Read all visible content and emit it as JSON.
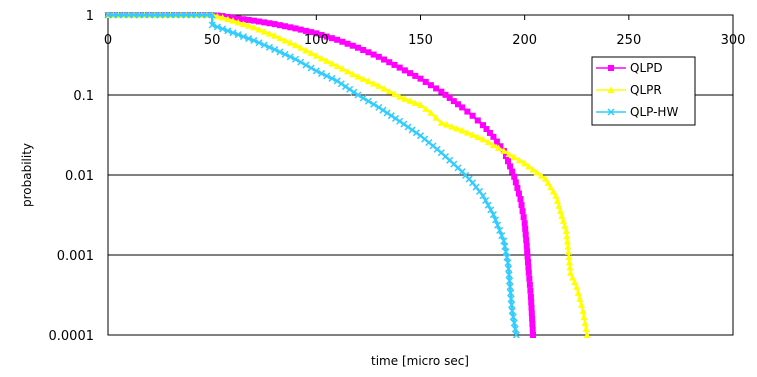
{
  "chart_data": {
    "type": "line",
    "title": "",
    "xlabel": "time [micro sec]",
    "ylabel": "probability",
    "xlim": [
      0,
      300
    ],
    "ylim": [
      0.0001,
      1
    ],
    "yscale": "log",
    "x_ticks": [
      0,
      50,
      100,
      150,
      200,
      250,
      300
    ],
    "x_tick_labels": [
      "0",
      "50",
      "100",
      "150",
      "200",
      "250",
      "300"
    ],
    "x_axis_position": "top",
    "y_ticks": [
      1,
      0.1,
      0.01,
      0.001,
      0.0001
    ],
    "y_tick_labels": [
      "1",
      "0.1",
      "0.01",
      "0.001",
      "0.0001"
    ],
    "grid": "horizontal",
    "legend_position": "right",
    "series": [
      {
        "name": "QLPD",
        "color": "#ff00ff",
        "marker": "square",
        "points": [
          [
            0,
            1
          ],
          [
            10,
            1
          ],
          [
            20,
            1
          ],
          [
            30,
            1
          ],
          [
            40,
            1
          ],
          [
            50,
            1
          ],
          [
            55,
            0.97
          ],
          [
            60,
            0.92
          ],
          [
            70,
            0.85
          ],
          [
            80,
            0.77
          ],
          [
            90,
            0.68
          ],
          [
            100,
            0.59
          ],
          [
            110,
            0.49
          ],
          [
            120,
            0.39
          ],
          [
            130,
            0.3
          ],
          [
            140,
            0.22
          ],
          [
            150,
            0.16
          ],
          [
            160,
            0.11
          ],
          [
            170,
            0.07
          ],
          [
            175,
            0.055
          ],
          [
            180,
            0.042
          ],
          [
            185,
            0.03
          ],
          [
            190,
            0.02
          ],
          [
            195,
            0.0095
          ],
          [
            198,
            0.005
          ],
          [
            200,
            0.0025
          ],
          [
            201,
            0.0013
          ],
          [
            202,
            0.0006
          ],
          [
            203,
            0.0003
          ],
          [
            204,
            0.0001
          ]
        ]
      },
      {
        "name": "QLPR",
        "color": "#ffff00",
        "marker": "triangle",
        "points": [
          [
            0,
            1
          ],
          [
            10,
            1
          ],
          [
            20,
            1
          ],
          [
            30,
            1
          ],
          [
            40,
            1
          ],
          [
            50,
            1
          ],
          [
            55,
            0.93
          ],
          [
            60,
            0.85
          ],
          [
            70,
            0.7
          ],
          [
            80,
            0.55
          ],
          [
            90,
            0.42
          ],
          [
            100,
            0.31
          ],
          [
            110,
            0.23
          ],
          [
            120,
            0.17
          ],
          [
            130,
            0.13
          ],
          [
            140,
            0.095
          ],
          [
            150,
            0.075
          ],
          [
            155,
            0.06
          ],
          [
            160,
            0.045
          ],
          [
            170,
            0.036
          ],
          [
            180,
            0.028
          ],
          [
            190,
            0.02
          ],
          [
            200,
            0.014
          ],
          [
            210,
            0.009
          ],
          [
            215,
            0.0055
          ],
          [
            220,
            0.002
          ],
          [
            222,
            0.0006
          ],
          [
            225,
            0.0004
          ],
          [
            228,
            0.0002
          ],
          [
            230,
            0.0001
          ]
        ]
      },
      {
        "name": "QLP-HW",
        "color": "#33ccff",
        "marker": "x",
        "points": [
          [
            0,
            1
          ],
          [
            10,
            1
          ],
          [
            20,
            1
          ],
          [
            30,
            1
          ],
          [
            40,
            1
          ],
          [
            50,
            1
          ],
          [
            50,
            0.75
          ],
          [
            60,
            0.6
          ],
          [
            70,
            0.48
          ],
          [
            80,
            0.37
          ],
          [
            90,
            0.28
          ],
          [
            100,
            0.2
          ],
          [
            110,
            0.15
          ],
          [
            120,
            0.1
          ],
          [
            130,
            0.07
          ],
          [
            140,
            0.047
          ],
          [
            150,
            0.031
          ],
          [
            160,
            0.019
          ],
          [
            170,
            0.011
          ],
          [
            175,
            0.008
          ],
          [
            180,
            0.0055
          ],
          [
            185,
            0.0032
          ],
          [
            190,
            0.0015
          ],
          [
            192,
            0.0008
          ],
          [
            193,
            0.0004
          ],
          [
            194,
            0.0002
          ],
          [
            196,
            0.0001
          ]
        ]
      }
    ]
  }
}
